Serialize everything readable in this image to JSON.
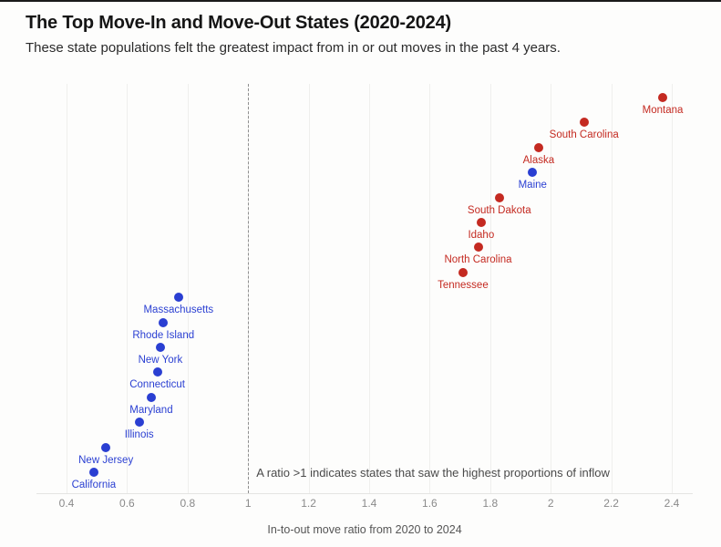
{
  "chart_data": {
    "type": "scatter",
    "title": "The Top Move-In and Move-Out States (2020-2024)",
    "subtitle": "These state populations felt the greatest impact from in or out moves in the past 4 years.",
    "xlabel": "In-to-out move ratio from 2020 to 2024",
    "xlim": [
      0.4,
      2.4
    ],
    "x_ticks": [
      {
        "value": 0.4,
        "label": "0.4"
      },
      {
        "value": 0.6,
        "label": "0.6"
      },
      {
        "value": 0.8,
        "label": "0.8"
      },
      {
        "value": 1.0,
        "label": "1"
      },
      {
        "value": 1.2,
        "label": "1.2"
      },
      {
        "value": 1.4,
        "label": "1.4"
      },
      {
        "value": 1.6,
        "label": "1.6"
      },
      {
        "value": 1.8,
        "label": "1.8"
      },
      {
        "value": 2.0,
        "label": "2"
      },
      {
        "value": 2.2,
        "label": "2.2"
      },
      {
        "value": 2.4,
        "label": "2.4"
      }
    ],
    "reference_line": {
      "x": 1,
      "style": "dashed"
    },
    "annotation": "A ratio >1 indicates states that saw the highest proportions of inflow",
    "grid": true,
    "colors": {
      "red": "#c42a21",
      "blue": "#2a3fd2"
    },
    "points": [
      {
        "state": "Montana",
        "ratio": 2.37,
        "color": "red"
      },
      {
        "state": "South Carolina",
        "ratio": 2.11,
        "color": "red"
      },
      {
        "state": "Alaska",
        "ratio": 1.96,
        "color": "red"
      },
      {
        "state": "Maine",
        "ratio": 1.94,
        "color": "blue"
      },
      {
        "state": "South Dakota",
        "ratio": 1.83,
        "color": "red"
      },
      {
        "state": "Idaho",
        "ratio": 1.77,
        "color": "red"
      },
      {
        "state": "North Carolina",
        "ratio": 1.76,
        "color": "red"
      },
      {
        "state": "Tennessee",
        "ratio": 1.71,
        "color": "red"
      },
      {
        "state": "Massachusetts",
        "ratio": 0.77,
        "color": "blue"
      },
      {
        "state": "Rhode Island",
        "ratio": 0.72,
        "color": "blue"
      },
      {
        "state": "New York",
        "ratio": 0.71,
        "color": "blue"
      },
      {
        "state": "Connecticut",
        "ratio": 0.7,
        "color": "blue"
      },
      {
        "state": "Maryland",
        "ratio": 0.68,
        "color": "blue"
      },
      {
        "state": "Illinois",
        "ratio": 0.64,
        "color": "blue"
      },
      {
        "state": "New Jersey",
        "ratio": 0.53,
        "color": "blue"
      },
      {
        "state": "California",
        "ratio": 0.49,
        "color": "blue"
      }
    ]
  }
}
